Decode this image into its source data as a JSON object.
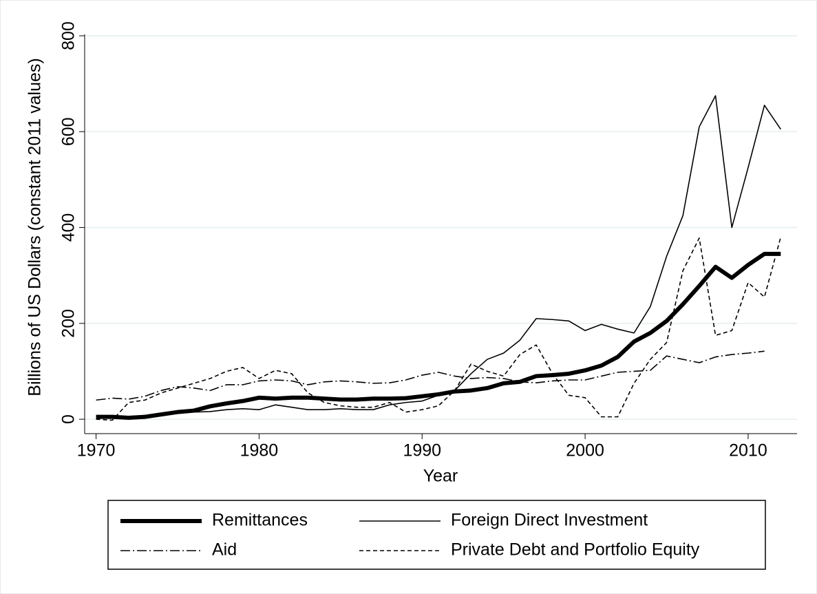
{
  "chart_data": {
    "type": "line",
    "x_label": "Year",
    "y_label": "Billions of US Dollars (constant 2011 values)",
    "x": [
      1970,
      1971,
      1972,
      1973,
      1974,
      1975,
      1976,
      1977,
      1978,
      1979,
      1980,
      1981,
      1982,
      1983,
      1984,
      1985,
      1986,
      1987,
      1988,
      1989,
      1990,
      1991,
      1992,
      1993,
      1994,
      1995,
      1996,
      1997,
      1998,
      1999,
      2000,
      2001,
      2002,
      2003,
      2004,
      2005,
      2006,
      2007,
      2008,
      2009,
      2010,
      2011,
      2012
    ],
    "series": [
      {
        "name": "Remittances",
        "color": "#000000",
        "width": 6,
        "dash": "solid",
        "values": [
          5,
          5,
          3,
          5,
          10,
          15,
          18,
          27,
          33,
          38,
          45,
          43,
          45,
          45,
          43,
          41,
          41,
          43,
          43,
          44,
          48,
          52,
          58,
          60,
          65,
          75,
          78,
          90,
          92,
          95,
          102,
          112,
          130,
          162,
          180,
          205,
          240,
          278,
          318,
          295,
          322,
          345,
          345
        ]
      },
      {
        "name": "Foreign Direct Investment",
        "color": "#000000",
        "width": 1.6,
        "dash": "solid",
        "values": [
          3,
          3,
          5,
          8,
          10,
          12,
          15,
          16,
          20,
          22,
          20,
          30,
          25,
          20,
          20,
          22,
          20,
          20,
          30,
          35,
          38,
          50,
          60,
          95,
          125,
          138,
          165,
          210,
          208,
          205,
          185,
          198,
          188,
          180,
          235,
          340,
          425,
          610,
          675,
          400,
          525,
          655,
          605
        ]
      },
      {
        "name": "Aid",
        "color": "#000000",
        "width": 1.6,
        "dash": "dashdot",
        "values": [
          40,
          44,
          42,
          48,
          60,
          68,
          65,
          60,
          72,
          72,
          80,
          82,
          80,
          72,
          78,
          80,
          78,
          75,
          76,
          82,
          92,
          98,
          90,
          85,
          87,
          85,
          78,
          76,
          80,
          82,
          82,
          90,
          98,
          100,
          102,
          132,
          125,
          118,
          130,
          135,
          138,
          142,
          null
        ]
      },
      {
        "name": "Private Debt and Portfolio Equity",
        "color": "#000000",
        "width": 1.6,
        "dash": "dash",
        "values": [
          0,
          -2,
          35,
          40,
          55,
          65,
          75,
          85,
          100,
          108,
          85,
          102,
          95,
          55,
          35,
          28,
          25,
          25,
          35,
          15,
          20,
          28,
          60,
          115,
          100,
          90,
          135,
          155,
          95,
          50,
          45,
          5,
          5,
          75,
          125,
          160,
          310,
          378,
          175,
          185,
          285,
          255,
          380
        ]
      }
    ],
    "xlim": [
      1969.3,
      2013
    ],
    "xticks": [
      1970,
      1980,
      1990,
      2000,
      2010
    ],
    "ylim": [
      -30,
      800
    ],
    "yticks": [
      0,
      200,
      400,
      600,
      800
    ],
    "grid": true,
    "legend": "bottom"
  }
}
